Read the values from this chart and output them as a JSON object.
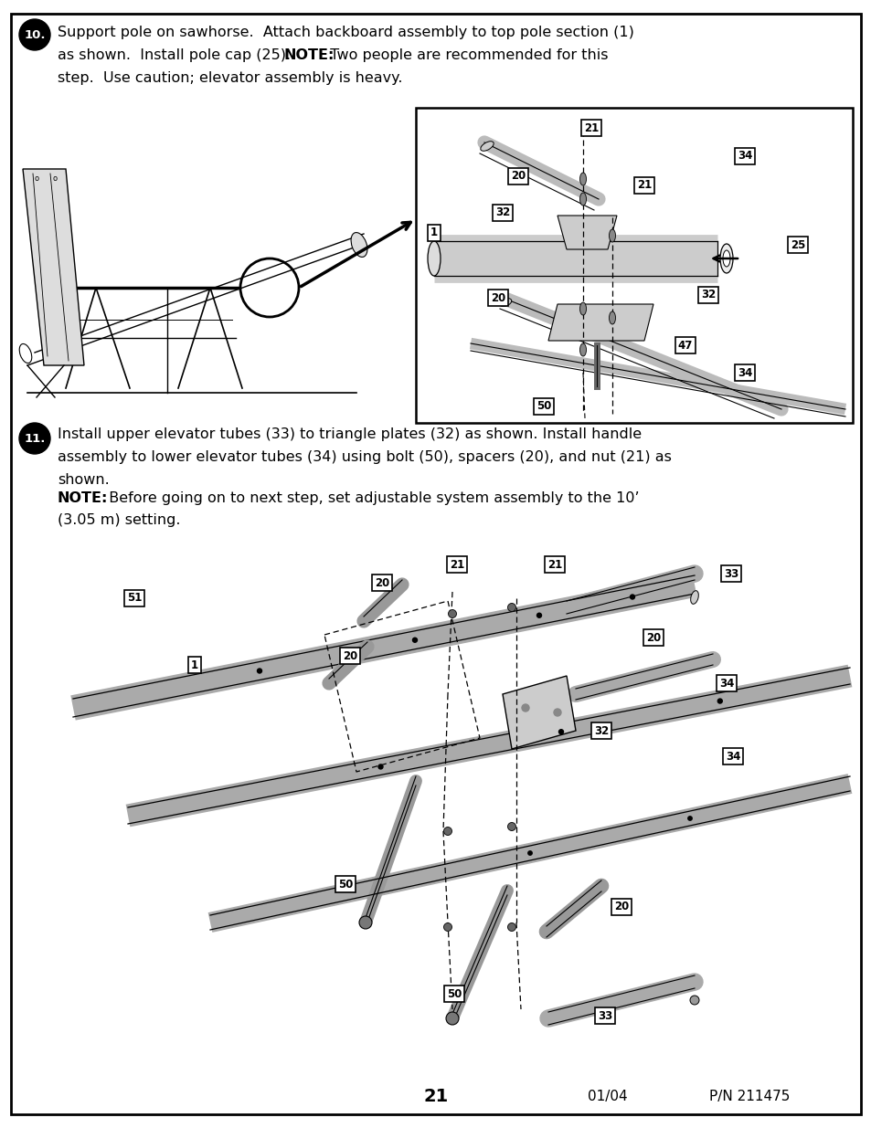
{
  "page_num": "21",
  "date": "01/04",
  "part_num": "P/N 211475",
  "bg_color": "#ffffff",
  "step10_lines": [
    [
      "normal",
      "Support pole on sawhorse.  Attach backboard assembly to top pole section (1)"
    ],
    [
      "normal",
      "as shown.  Install pole cap (25).  ",
      "bold",
      "NOTE:",
      "normal",
      "  Two people are recommended for this"
    ],
    [
      "normal",
      "step.  Use caution; elevator assembly is heavy."
    ]
  ],
  "step11_lines": [
    [
      "normal",
      "Install upper elevator tubes (33) to triangle plates (32) as shown. Install handle"
    ],
    [
      "normal",
      "assembly to lower elevator tubes (34) using bolt (50), spacers (20), and nut (21) as"
    ],
    [
      "normal",
      "shown."
    ],
    [
      "bold",
      "NOTE:",
      "normal",
      "  Before going on to next step, set adjustable system assembly to the 10’"
    ],
    [
      "normal",
      "(3.05 m) setting."
    ]
  ]
}
